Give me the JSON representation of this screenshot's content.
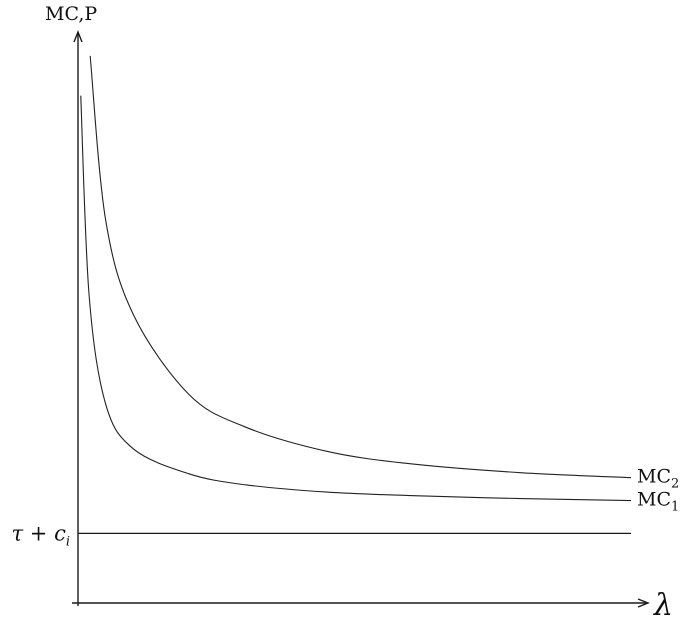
{
  "chart_data": {
    "type": "line",
    "ylabel": "MC,P",
    "xlabel": "λ",
    "series": [
      {
        "name": "MC",
        "name_sub": "2",
        "x": [
          0.022,
          0.05,
          0.1,
          0.2,
          0.3,
          0.45,
          0.6,
          0.8,
          1.0
        ],
        "y": [
          1.08,
          0.75,
          0.56,
          0.4,
          0.335,
          0.285,
          0.26,
          0.242,
          0.232
        ]
      },
      {
        "name": "MC",
        "name_sub": "1",
        "x": [
          0.005,
          0.02,
          0.05,
          0.1,
          0.2,
          0.3,
          0.45,
          0.6,
          0.8,
          1.0
        ],
        "y": [
          1.0,
          0.6,
          0.38,
          0.29,
          0.24,
          0.218,
          0.203,
          0.196,
          0.19,
          0.186
        ]
      },
      {
        "name": "τ + c",
        "name_sub": "i",
        "x": [
          0.0,
          1.0
        ],
        "y": [
          0.12,
          0.12
        ]
      }
    ],
    "xlim": [
      0,
      1
    ],
    "ylim": [
      -0.02,
      1.13
    ],
    "grid": false,
    "legend": "none"
  }
}
